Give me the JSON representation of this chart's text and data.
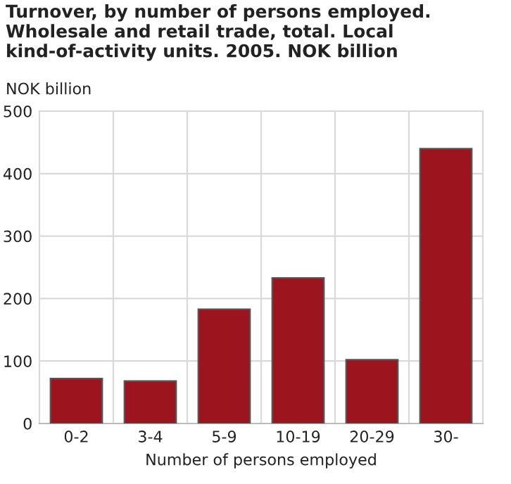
{
  "chart_data": {
    "type": "bar",
    "title": "Turnover, by number of persons employed. Wholesale and retail trade, total. Local kind-of-activity units. 2005. NOK billion",
    "ylabel": "NOK billion",
    "xlabel": "Number of persons employed",
    "categories": [
      "0-2",
      "3-4",
      "5-9",
      "10-19",
      "20-29",
      "30-"
    ],
    "values": [
      72,
      68,
      183,
      233,
      102,
      440
    ],
    "color": "#9b141e",
    "ylim": [
      0,
      500
    ],
    "yticks": [
      0,
      100,
      200,
      300,
      400,
      500
    ],
    "grid": true
  }
}
